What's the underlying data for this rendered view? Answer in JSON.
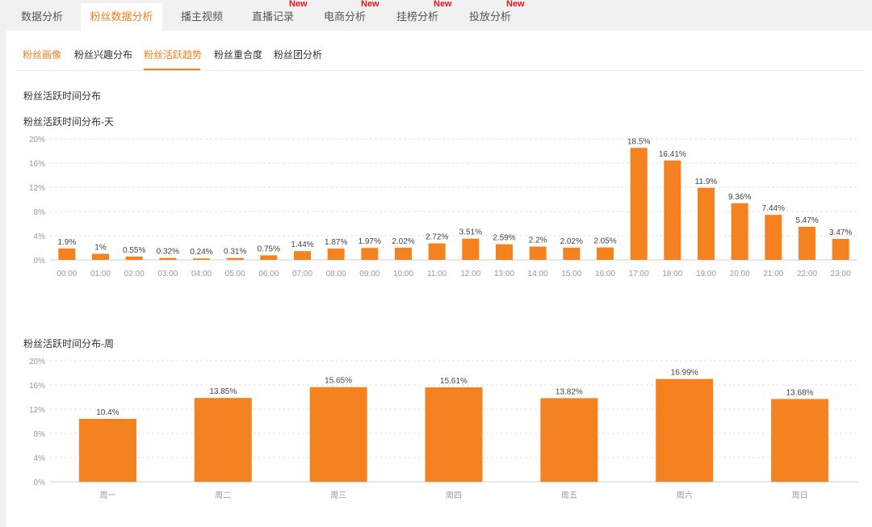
{
  "top_tabs": [
    {
      "label": "数据分析",
      "new": ""
    },
    {
      "label": "粉丝数据分析",
      "new": ""
    },
    {
      "label": "播主视频",
      "new": ""
    },
    {
      "label": "直播记录",
      "new": "New"
    },
    {
      "label": "电商分析",
      "new": "New"
    },
    {
      "label": "挂榜分析",
      "new": "New"
    },
    {
      "label": "投放分析",
      "new": "New"
    }
  ],
  "sub_tabs": [
    {
      "label": "粉丝画像"
    },
    {
      "label": "粉丝兴趣分布"
    },
    {
      "label": "粉丝活跃趋势"
    },
    {
      "label": "粉丝重合度"
    },
    {
      "label": "粉丝团分析"
    }
  ],
  "section_title": "粉丝活跃时间分布",
  "colors": {
    "accent": "#f0801a",
    "bar": "#f58220",
    "new_badge": "#e8161a"
  },
  "chart_data": [
    {
      "type": "bar",
      "title": "粉丝活跃时间分布-天",
      "categories": [
        "00:00",
        "01:00",
        "02:00",
        "03:00",
        "04:00",
        "05:00",
        "06:00",
        "07:00",
        "08:00",
        "09:00",
        "10:00",
        "11:00",
        "12:00",
        "13:00",
        "14:00",
        "15:00",
        "16:00",
        "17:00",
        "18:00",
        "19:00",
        "20:00",
        "21:00",
        "22:00",
        "23:00"
      ],
      "values": [
        1.9,
        1,
        0.55,
        0.32,
        0.24,
        0.31,
        0.75,
        1.44,
        1.87,
        1.97,
        2.02,
        2.72,
        3.51,
        2.59,
        2.2,
        2.02,
        2.05,
        18.5,
        16.41,
        11.9,
        9.36,
        7.44,
        5.47,
        3.47
      ],
      "labels": [
        "1.9%",
        "1%",
        "0.55%",
        "0.32%",
        "0.24%",
        "0.31%",
        "0.75%",
        "1.44%",
        "1.87%",
        "1.97%",
        "2.02%",
        "2.72%",
        "3.51%",
        "2.59%",
        "2.2%",
        "2.02%",
        "2.05%",
        "18.5%",
        "16.41%",
        "11.9%",
        "9.36%",
        "7.44%",
        "5.47%",
        "3.47%"
      ],
      "yticks": [
        "0%",
        "4%",
        "8%",
        "12%",
        "16%",
        "20%"
      ],
      "ylim": [
        0,
        20
      ],
      "grid": true
    },
    {
      "type": "bar",
      "title": "粉丝活跃时间分布-周",
      "categories": [
        "周一",
        "周二",
        "周三",
        "周四",
        "周五",
        "周六",
        "周日"
      ],
      "values": [
        10.4,
        13.85,
        15.65,
        15.61,
        13.82,
        16.99,
        13.68
      ],
      "labels": [
        "10.4%",
        "13.85%",
        "15.65%",
        "15.61%",
        "13.82%",
        "16.99%",
        "13.68%"
      ],
      "yticks": [
        "0%",
        "4%",
        "8%",
        "12%",
        "16%",
        "20%"
      ],
      "ylim": [
        0,
        20
      ],
      "grid": true
    }
  ]
}
